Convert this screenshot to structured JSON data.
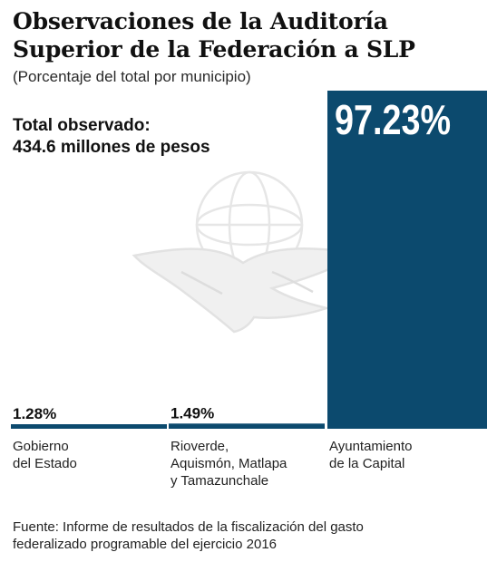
{
  "header": {
    "title_line1": "Observaciones de la Auditoría",
    "title_line2": "Superior de la Federación a SLP",
    "subtitle": "(Porcentaje del total por municipio)"
  },
  "summary": {
    "line1": "Total observado:",
    "line2": "434.6 millones de pesos"
  },
  "chart_data": {
    "type": "bar",
    "title": "Observaciones de la Auditoría Superior de la Federación a SLP",
    "subtitle": "(Porcentaje del total por municipio)",
    "unit": "%",
    "categories": [
      [
        "Gobierno",
        "del Estado"
      ],
      [
        "Rioverde,",
        "Aquismón, Matlapa",
        "y Tamazunchale"
      ],
      [
        "Ayuntamiento",
        "de la Capital"
      ]
    ],
    "values": [
      1.28,
      1.49,
      97.23
    ],
    "value_labels": [
      "1.28%",
      "1.49%",
      "97.23%"
    ],
    "ylim": [
      0,
      100
    ],
    "bar_color": "#0c4a6e",
    "grid": false,
    "legend": "none"
  },
  "colors": {
    "bar": "#0c4a6e",
    "text": "#111111",
    "watermark": "#ececec"
  },
  "watermark_icon": "eagle-globe-emblem",
  "source": {
    "line1": "Fuente: Informe de resultados de la fiscalización del gasto",
    "line2": "federalizado programable del ejercicio 2016"
  }
}
